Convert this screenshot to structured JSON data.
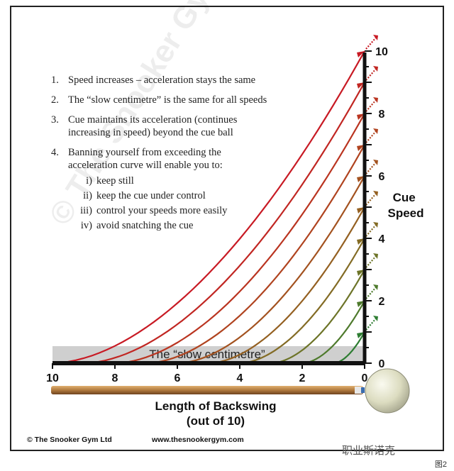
{
  "notes": [
    {
      "num": "1.",
      "lines": [
        "Speed increases – acceleration stays the same"
      ]
    },
    {
      "num": "2.",
      "lines": [
        "The “slow centimetre” is the same for all speeds"
      ]
    },
    {
      "num": "3.",
      "lines": [
        "Cue maintains its acceleration (continues",
        "increasing in speed) beyond the cue ball"
      ]
    },
    {
      "num": "4.",
      "lines": [
        "Banning yourself from exceeding the",
        "acceleration curve will enable you to:"
      ]
    }
  ],
  "sub_items": [
    {
      "rn": "i)",
      "text": "keep still"
    },
    {
      "rn": "ii)",
      "text": "keep the cue under control"
    },
    {
      "rn": "iii)",
      "text": "control your speeds more easily"
    },
    {
      "rn": "iv)",
      "text": "avoid snatching the cue"
    }
  ],
  "chart_data": {
    "type": "line",
    "xlabel": "Length of Backswing",
    "xlabel_sub": "(out of 10)",
    "ylabel": "Cue Speed",
    "x_ticks": [
      "10",
      "8",
      "6",
      "4",
      "2",
      "0"
    ],
    "y_ticks": [
      "0",
      "2",
      "4",
      "6",
      "8",
      "10"
    ],
    "xlim": [
      10,
      0
    ],
    "ylim": [
      0,
      10
    ],
    "band_label": "The “slow centimetre”",
    "series": [
      {
        "backswing": 1,
        "speed": 1,
        "color": "#2e7d32"
      },
      {
        "backswing": 2,
        "speed": 2,
        "color": "#4e7a2c"
      },
      {
        "backswing": 3,
        "speed": 3,
        "color": "#6d7428"
      },
      {
        "backswing": 4,
        "speed": 4,
        "color": "#836b24"
      },
      {
        "backswing": 5,
        "speed": 5,
        "color": "#946021"
      },
      {
        "backswing": 6,
        "speed": 6,
        "color": "#a3521f"
      },
      {
        "backswing": 7,
        "speed": 7,
        "color": "#b0431f"
      },
      {
        "backswing": 8,
        "speed": 8,
        "color": "#ba3420"
      },
      {
        "backswing": 9,
        "speed": 9,
        "color": "#c12622"
      },
      {
        "backswing": 10,
        "speed": 10,
        "color": "#c81a24"
      }
    ]
  },
  "footer": {
    "copyright": "© The Snooker Gym Ltd",
    "website": "www.thesnookergym.com",
    "brand": "职业斯诺克",
    "caption": "图2"
  },
  "colors": {
    "band": "#cfcfcf",
    "axis": "#111111",
    "cue_wood": "#b07a3e",
    "ball": "#e4e4cc"
  }
}
